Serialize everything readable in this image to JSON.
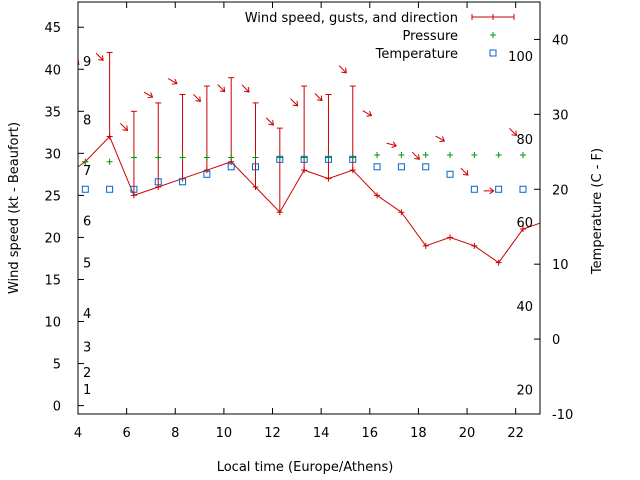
{
  "chart_data": {
    "type": "line",
    "xlabel": "Local time (Europe/Athens)",
    "ylabel": "Wind speed (kt - Beaufort)",
    "y2label": "Temperature (C - F)",
    "xlim": [
      4,
      23
    ],
    "ylim": [
      -1,
      48
    ],
    "y2lim": [
      -10,
      45
    ],
    "x_ticks": [
      4,
      6,
      8,
      10,
      12,
      14,
      16,
      18,
      20,
      22
    ],
    "y_ticks": [
      0,
      5,
      10,
      15,
      20,
      25,
      30,
      35,
      40,
      45
    ],
    "y2_ticks": [
      -10,
      0,
      10,
      20,
      30,
      40
    ],
    "beaufort_labels": [
      {
        "text": "1",
        "wind": 2
      },
      {
        "text": "2",
        "wind": 4
      },
      {
        "text": "3",
        "wind": 7
      },
      {
        "text": "4",
        "wind": 11
      },
      {
        "text": "5",
        "wind": 17
      },
      {
        "text": "6",
        "wind": 22
      },
      {
        "text": "7",
        "wind": 28
      },
      {
        "text": "8",
        "wind": 34
      },
      {
        "text": "9",
        "wind": 41
      }
    ],
    "fahrenheit_labels": [
      {
        "text": "20",
        "celsius": -6.7
      },
      {
        "text": "40",
        "celsius": 4.4
      },
      {
        "text": "60",
        "celsius": 15.6
      },
      {
        "text": "80",
        "celsius": 26.7
      },
      {
        "text": "100",
        "celsius": 37.8
      }
    ],
    "legend_position": "top-right",
    "grid": false,
    "series": [
      {
        "name": "Wind speed, gusts, and direction",
        "color": "#cc0000",
        "x": [
          3.3,
          4.3,
          5.3,
          6.3,
          7.3,
          8.3,
          9.3,
          10.3,
          11.3,
          12.3,
          13.3,
          14.3,
          15.3,
          16.3,
          17.3,
          18.3,
          19.3,
          20.3,
          21.3,
          22.3,
          23.3
        ],
        "values": [
          27,
          29,
          32,
          25,
          26,
          27,
          28,
          29,
          26,
          23,
          28,
          27,
          28,
          25,
          23,
          19,
          20,
          19,
          17,
          21,
          22
        ],
        "gusts": [
          null,
          null,
          42,
          35,
          36,
          37,
          38,
          39,
          36,
          33,
          38,
          37,
          38,
          null,
          null,
          null,
          null,
          null,
          null,
          null,
          null
        ],
        "direction_deg": [
          null,
          315,
          315,
          315,
          300,
          300,
          315,
          315,
          315,
          315,
          315,
          315,
          315,
          300,
          285,
          315,
          300,
          315,
          270,
          315,
          null
        ]
      },
      {
        "name": "Pressure",
        "color": "#009900",
        "x": [
          4.3,
          5.3,
          6.3,
          7.3,
          8.3,
          9.3,
          10.3,
          11.3,
          12.3,
          13.3,
          14.3,
          15.3,
          16.3,
          17.3,
          18.3,
          19.3,
          20.3,
          21.3,
          22.3
        ],
        "values": [
          29,
          29,
          29.5,
          29.5,
          29.5,
          29.5,
          29.5,
          29.5,
          29.5,
          29.5,
          29.5,
          29.5,
          29.8,
          29.8,
          29.8,
          29.8,
          29.8,
          29.8,
          29.8
        ]
      },
      {
        "name": "Temperature",
        "color": "#0066cc",
        "x": [
          4.3,
          5.3,
          6.3,
          7.3,
          8.3,
          9.3,
          10.3,
          11.3,
          12.3,
          13.3,
          14.3,
          15.3,
          16.3,
          17.3,
          18.3,
          19.3,
          20.3,
          21.3,
          22.3
        ],
        "values": [
          20,
          20,
          20,
          21,
          21,
          22,
          23,
          23,
          24,
          24,
          24,
          24,
          23,
          23,
          23,
          22,
          20,
          20,
          20
        ]
      }
    ]
  }
}
